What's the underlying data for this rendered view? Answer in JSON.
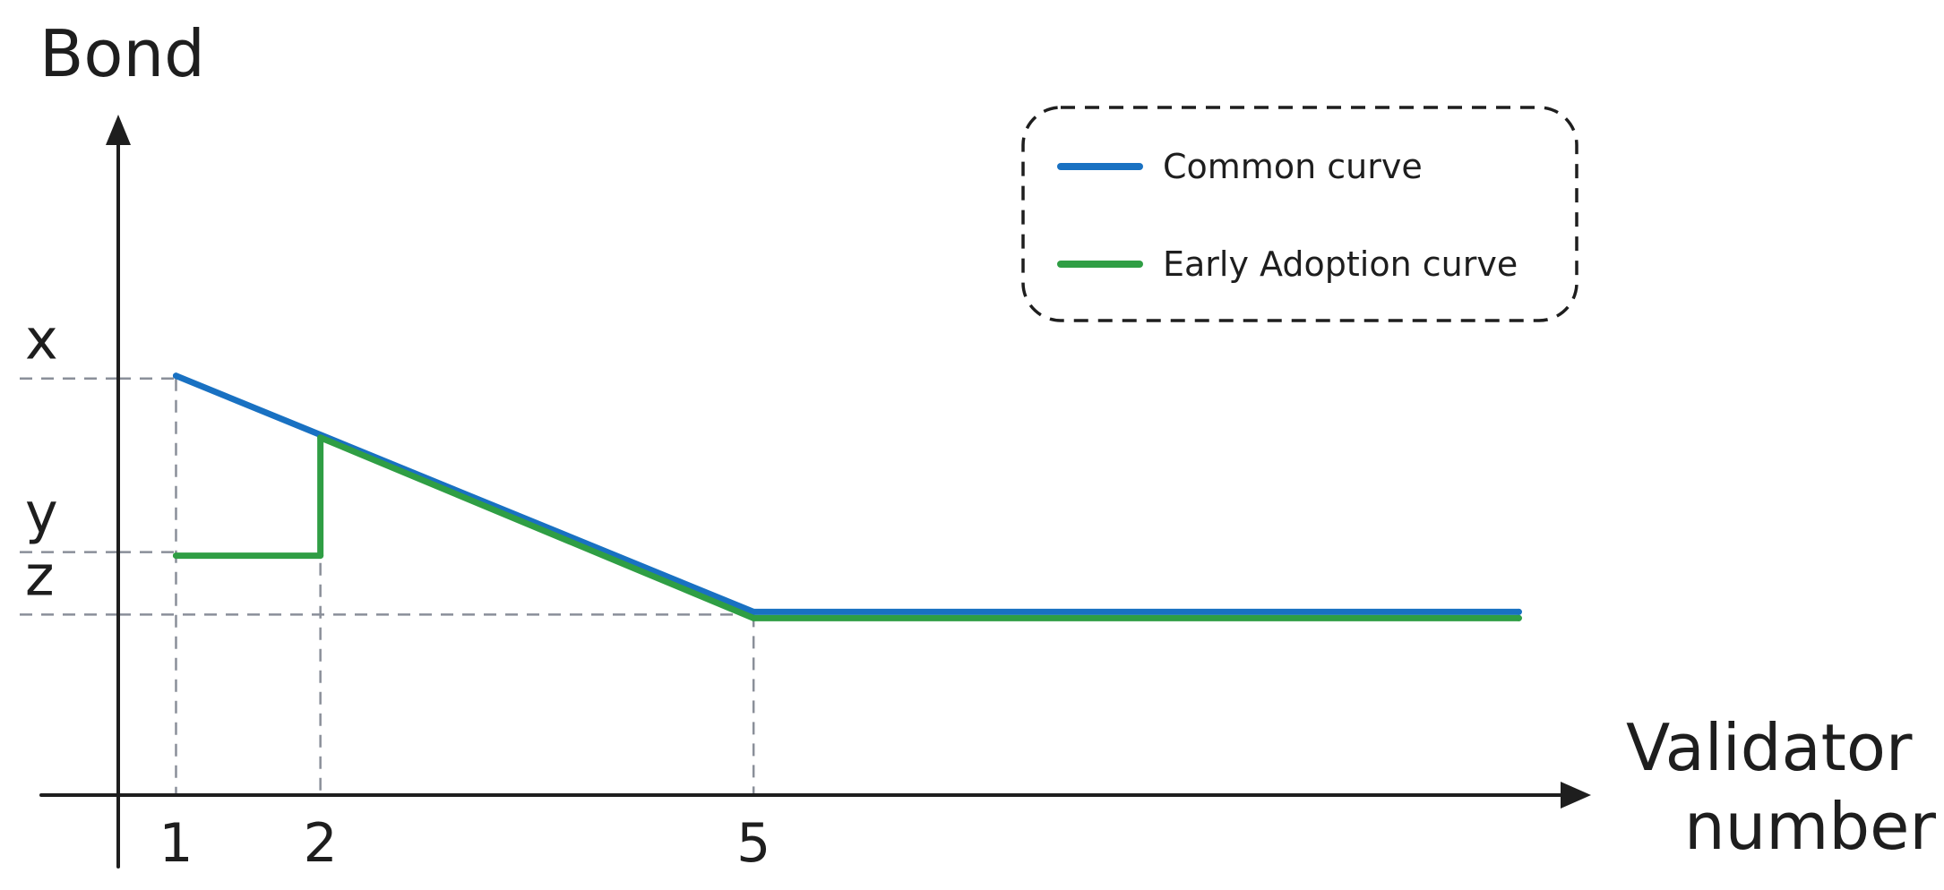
{
  "chart_data": {
    "type": "line",
    "ylabel": "Bond",
    "xlabel_lines": [
      "Validator",
      "number"
    ],
    "x_ticks": [
      {
        "value": 1,
        "label": "1"
      },
      {
        "value": 2,
        "label": "2"
      },
      {
        "value": 5,
        "label": "5"
      }
    ],
    "y_levels": [
      {
        "value": 3,
        "label": "x"
      },
      {
        "value": 1.75,
        "label": "y"
      },
      {
        "value": 1.3,
        "label": "z"
      }
    ],
    "xlim": [
      0.6,
      10.8
    ],
    "ylim": [
      0,
      4.9
    ],
    "legend_position": "top-right",
    "legend_style": "dashed-rounded-box",
    "series": [
      {
        "name": "Common curve",
        "color": "#1971c2",
        "points": [
          [
            1,
            3
          ],
          [
            5,
            1.3
          ],
          [
            10.3,
            1.3
          ]
        ]
      },
      {
        "name": "Early Adoption curve",
        "color": "#2f9e44",
        "points": [
          [
            1,
            1.75
          ],
          [
            2,
            1.75
          ],
          [
            2,
            2.6
          ],
          [
            5,
            1.3
          ],
          [
            10.3,
            1.3
          ]
        ]
      }
    ]
  }
}
